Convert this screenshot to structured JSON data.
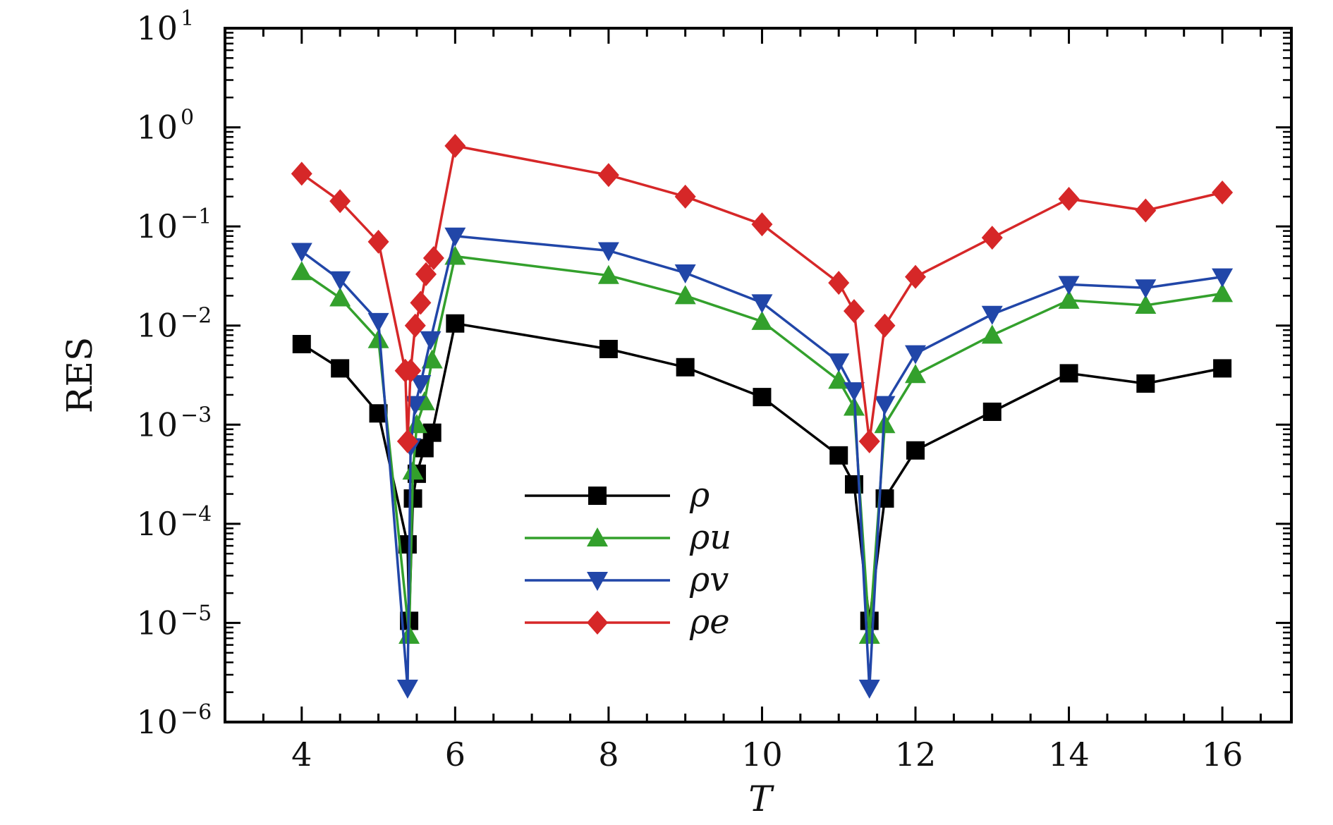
{
  "chart_data": {
    "type": "line",
    "xlabel": "T",
    "ylabel": "RES",
    "xlim": [
      3,
      16.9
    ],
    "ylim": [
      1e-06,
      10
    ],
    "yscale": "log",
    "x_ticks": [
      "4",
      "6",
      "8",
      "10",
      "12",
      "14",
      "16"
    ],
    "x_tick_values": [
      4,
      6,
      8,
      10,
      12,
      14,
      16
    ],
    "y_ticks": [
      {
        "base": "10",
        "exp": "1",
        "value": 10
      },
      {
        "base": "10",
        "exp": "0",
        "value": 1
      },
      {
        "base": "10",
        "exp": "−1",
        "value": 0.1
      },
      {
        "base": "10",
        "exp": "−2",
        "value": 0.01
      },
      {
        "base": "10",
        "exp": "−3",
        "value": 0.001
      },
      {
        "base": "10",
        "exp": "−4",
        "value": 0.0001
      },
      {
        "base": "10",
        "exp": "−5",
        "value": 1e-05
      },
      {
        "base": "10",
        "exp": "−6",
        "value": 1e-06
      }
    ],
    "grid": false,
    "legend_position": "center",
    "series": [
      {
        "name": "ρ",
        "color": "#000000",
        "marker": "square",
        "x": [
          4,
          4.5,
          5,
          5.38,
          5.4,
          5.45,
          5.5,
          5.6,
          5.7,
          6,
          8,
          9,
          10,
          11,
          11.2,
          11.4,
          11.6,
          12,
          13,
          14,
          15,
          16
        ],
        "y": [
          0.0065,
          0.0037,
          0.0013,
          6.2e-05,
          1.05e-05,
          0.00018,
          0.00032,
          0.00058,
          0.00083,
          0.0105,
          0.0058,
          0.0038,
          0.0019,
          0.00049,
          0.00025,
          1.05e-05,
          0.00018,
          0.00055,
          0.00135,
          0.0033,
          0.0026,
          0.0037
        ]
      },
      {
        "name": "ρu",
        "color": "#33a02c",
        "marker": "triangle-up",
        "x": [
          4,
          4.5,
          5,
          5.4,
          5.45,
          5.5,
          5.6,
          5.7,
          6,
          8,
          9,
          10,
          11,
          11.2,
          11.4,
          11.6,
          12,
          13,
          14,
          15,
          16
        ],
        "y": [
          0.035,
          0.019,
          0.0072,
          7.5e-06,
          0.00034,
          0.001,
          0.0017,
          0.0045,
          0.05,
          0.032,
          0.02,
          0.011,
          0.0028,
          0.0015,
          7.5e-06,
          0.001,
          0.0032,
          0.008,
          0.018,
          0.016,
          0.021
        ]
      },
      {
        "name": "ρv",
        "color": "#2146a8",
        "marker": "triangle-down",
        "x": [
          4,
          4.5,
          5,
          5.38,
          5.42,
          5.48,
          5.55,
          5.68,
          6,
          8,
          9,
          10,
          11,
          11.2,
          11.4,
          11.6,
          12,
          13,
          14,
          15,
          16
        ],
        "y": [
          0.056,
          0.029,
          0.011,
          2.2e-06,
          0.0006,
          0.0016,
          0.0026,
          0.0072,
          0.08,
          0.057,
          0.034,
          0.017,
          0.0043,
          0.0022,
          2.2e-06,
          0.0016,
          0.0052,
          0.013,
          0.026,
          0.024,
          0.031
        ]
      },
      {
        "name": "ρe",
        "color": "#d62728",
        "marker": "diamond",
        "x": [
          4,
          4.5,
          5,
          5.35,
          5.38,
          5.42,
          5.48,
          5.55,
          5.62,
          5.72,
          6,
          8,
          9,
          10,
          11,
          11.2,
          11.4,
          11.6,
          12,
          13,
          14,
          15,
          16
        ],
        "y": [
          0.34,
          0.18,
          0.07,
          0.0035,
          0.00068,
          0.0035,
          0.01,
          0.017,
          0.033,
          0.048,
          0.65,
          0.33,
          0.2,
          0.105,
          0.027,
          0.014,
          0.00068,
          0.01,
          0.031,
          0.077,
          0.19,
          0.145,
          0.22
        ]
      }
    ]
  }
}
